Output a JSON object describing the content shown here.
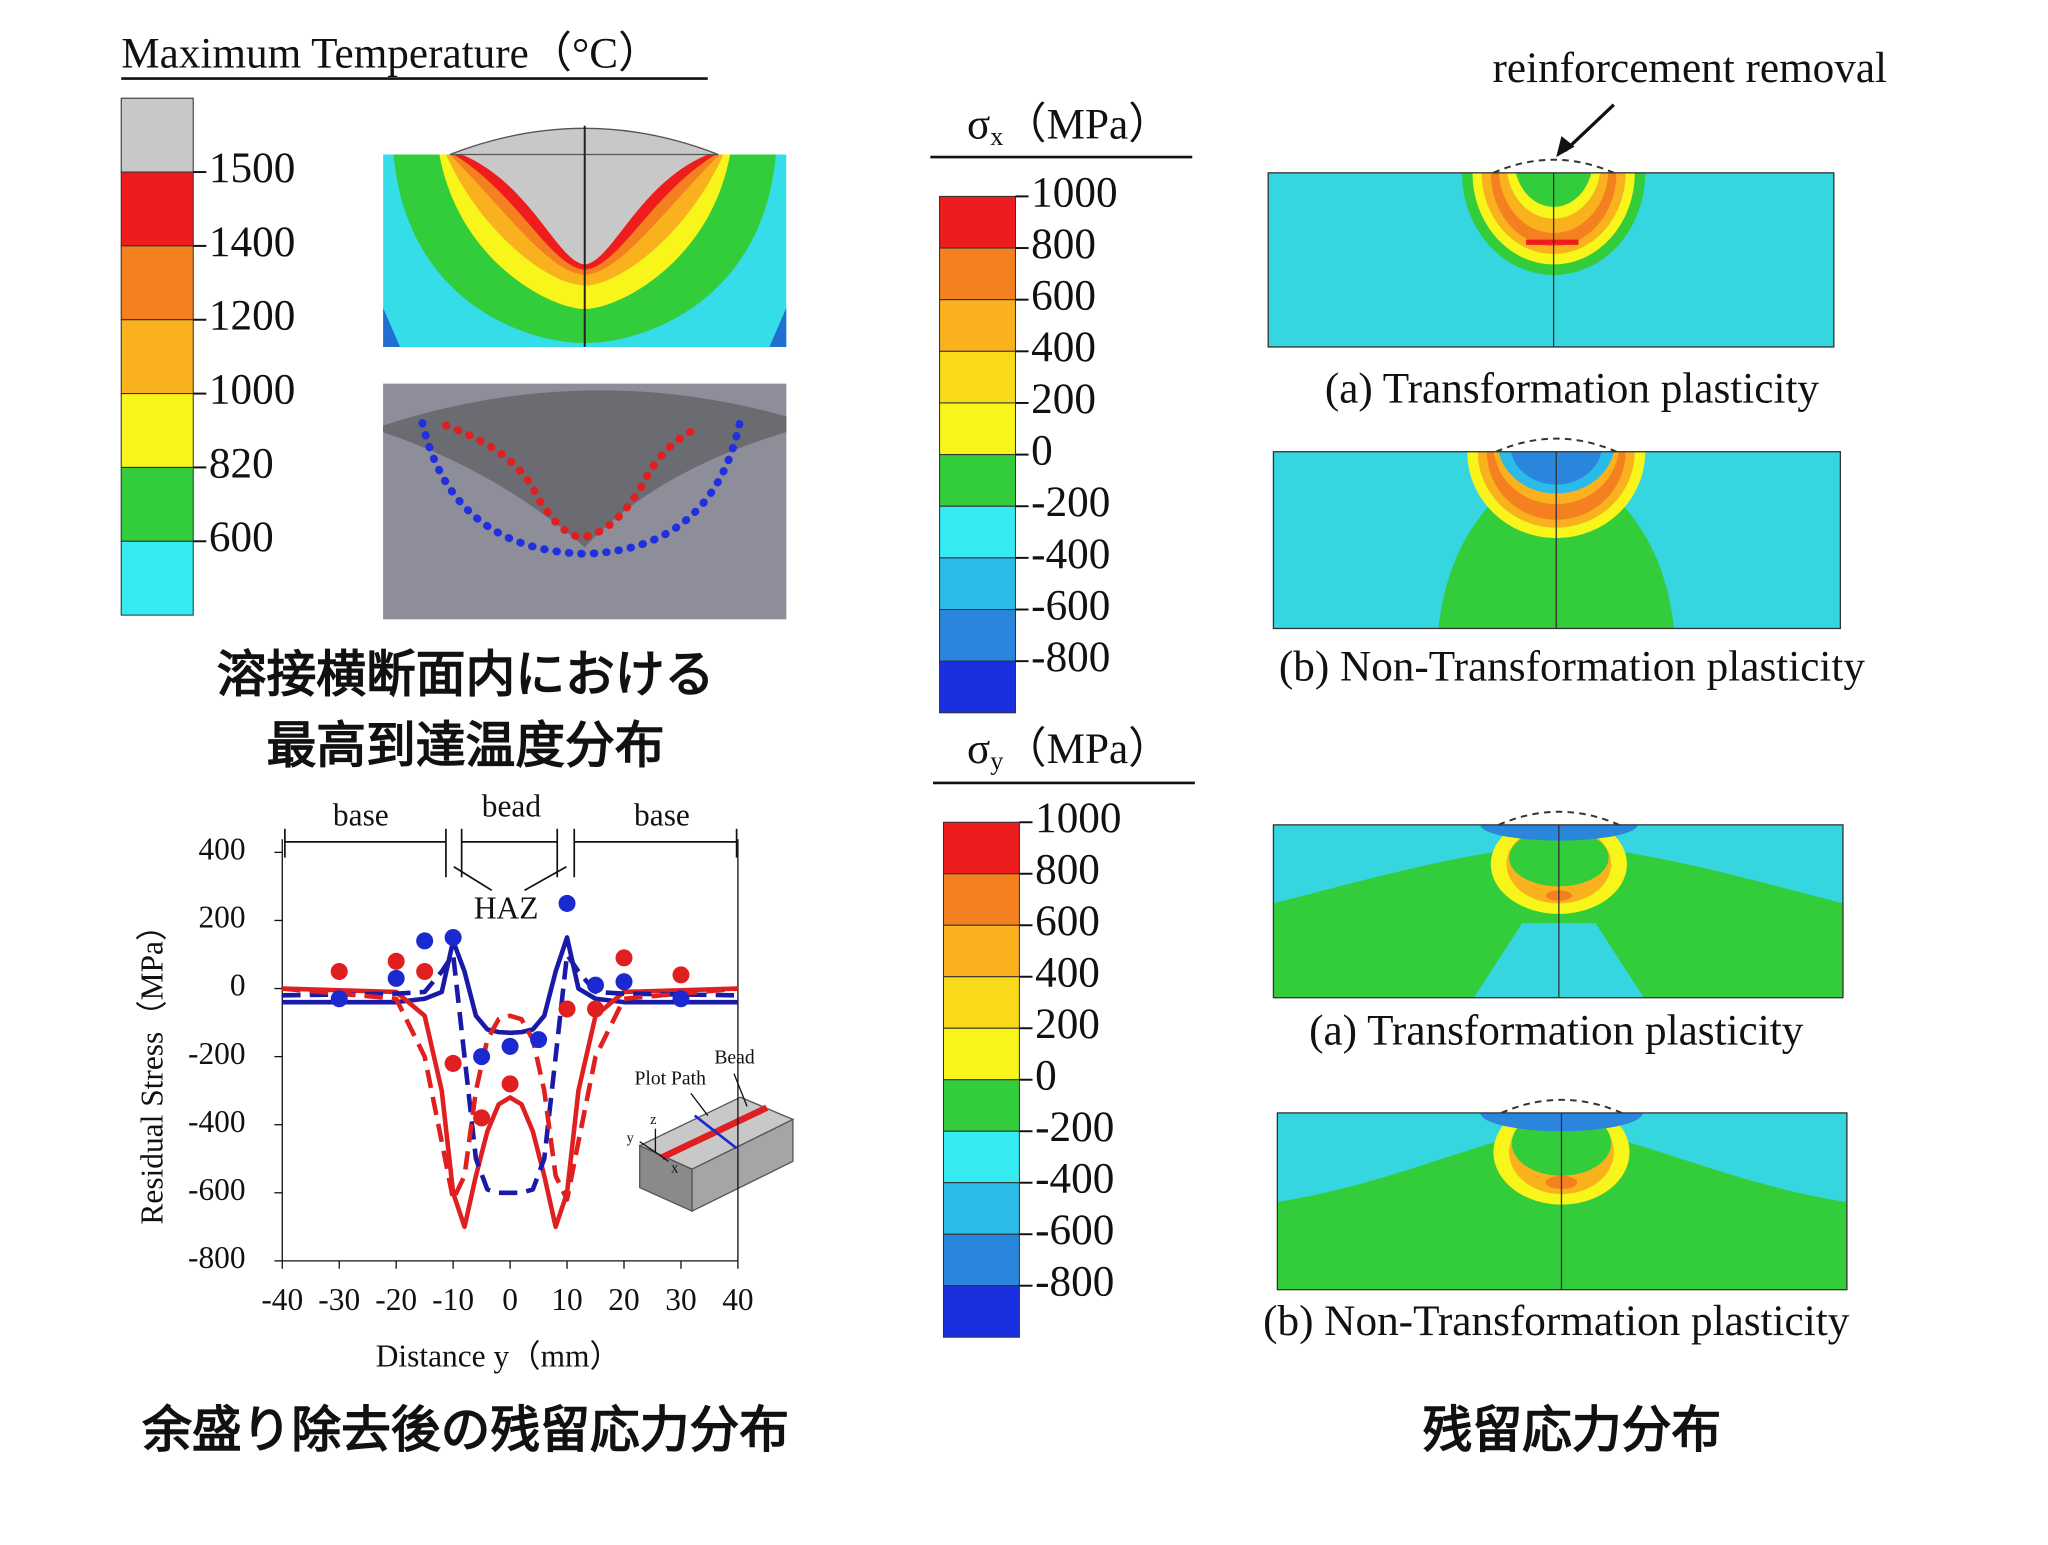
{
  "temperature": {
    "title": "Maximum Temperature（°C）",
    "ticks": [
      1500,
      1400,
      1200,
      1000,
      820,
      600
    ],
    "colors": [
      "#c8c8c8",
      "#ee1c1c",
      "#f5801f",
      "#f9b21e",
      "#f8f51a",
      "#33cc3a",
      "#35eaf0"
    ]
  },
  "captions": {
    "temperature": [
      "溶接横断面内における",
      "最高到達温度分布"
    ],
    "chart": "余盛り除去後の残留応力分布",
    "stress": "残留応力分布"
  },
  "chart_data": {
    "type": "line",
    "xlabel": "Distance y（mm）",
    "ylabel": "Residual Stress（MPa）",
    "xlim": [
      -40,
      40
    ],
    "ylim": [
      -800,
      400
    ],
    "xticks": [
      -40,
      -30,
      -20,
      -10,
      0,
      10,
      20,
      30,
      40
    ],
    "yticks": [
      -800,
      -600,
      -400,
      -200,
      0,
      200,
      400
    ],
    "x": [
      -40,
      -20,
      -15,
      -12,
      -10,
      -8,
      -6,
      -4,
      -2,
      0,
      2,
      4,
      6,
      8,
      10,
      12,
      15,
      20,
      40
    ],
    "series": [
      {
        "color": "#1a1aa8",
        "style": "solid",
        "values": [
          -40,
          -40,
          -30,
          -10,
          140,
          50,
          -80,
          -120,
          -128,
          -130,
          -128,
          -120,
          -80,
          50,
          150,
          0,
          -30,
          -40,
          -40
        ]
      },
      {
        "color": "#e02020",
        "style": "solid",
        "values": [
          0,
          -10,
          -80,
          -300,
          -600,
          -700,
          -550,
          -420,
          -340,
          -320,
          -340,
          -420,
          -550,
          -700,
          -600,
          -300,
          -80,
          -10,
          0
        ]
      },
      {
        "color": "#1a1aa8",
        "style": "dashed",
        "values": [
          -20,
          -15,
          -10,
          50,
          100,
          -200,
          -500,
          -590,
          -600,
          -600,
          -600,
          -590,
          -500,
          -200,
          100,
          50,
          -10,
          -15,
          -20
        ]
      },
      {
        "color": "#e02020",
        "style": "dashed",
        "values": [
          0,
          -30,
          -200,
          -450,
          -620,
          -550,
          -300,
          -150,
          -90,
          -80,
          -90,
          -150,
          -300,
          -550,
          -620,
          -450,
          -200,
          -30,
          0
        ]
      }
    ],
    "points": [
      {
        "color": "#e02020",
        "x": [
          -30,
          -20,
          -15,
          -10,
          -5,
          0,
          10,
          15,
          20,
          30
        ],
        "values": [
          50,
          80,
          50,
          -220,
          -380,
          -280,
          -60,
          -60,
          90,
          40
        ]
      },
      {
        "color": "#1a2ad0",
        "x": [
          -30,
          -20,
          -15,
          -10,
          -5,
          0,
          5,
          10,
          15,
          20,
          30
        ],
        "values": [
          -30,
          30,
          140,
          150,
          -200,
          -170,
          -150,
          250,
          10,
          20,
          -30
        ]
      }
    ],
    "regions": [
      "base",
      "bead",
      "base"
    ],
    "haz": "HAZ",
    "inset": {
      "path": "Plot Path",
      "bead": "Bead",
      "z": "z",
      "y": "y",
      "x": "x"
    }
  },
  "sigma_x": {
    "symbol": "σ",
    "subscript": "x",
    "unit": "（MPa）",
    "ticks": [
      1000,
      800,
      600,
      400,
      200,
      0,
      -200,
      -400,
      -600,
      -800
    ],
    "colors": [
      "#ee1c1c",
      "#f5801f",
      "#f9b21e",
      "#f8da1a",
      "#f8f51a",
      "#33cc3a",
      "#35eaf0",
      "#2bbbe8",
      "#2a85dc",
      "#1a30e0"
    ],
    "annotation": "reinforcement removal",
    "panels": [
      "(a) Transformation plasticity",
      "(b) Non-Transformation plasticity"
    ]
  },
  "sigma_y": {
    "symbol": "σ",
    "subscript": "y",
    "unit": "（MPa）",
    "ticks": [
      1000,
      800,
      600,
      400,
      200,
      0,
      -200,
      -400,
      -600,
      -800
    ],
    "colors": [
      "#ee1c1c",
      "#f5801f",
      "#f9b21e",
      "#f8da1a",
      "#f8f51a",
      "#33cc3a",
      "#35eaf0",
      "#2bbbe8",
      "#2a85dc",
      "#1a30e0"
    ],
    "panels": [
      "(a) Transformation plasticity",
      "(b) Non-Transformation plasticity"
    ]
  }
}
